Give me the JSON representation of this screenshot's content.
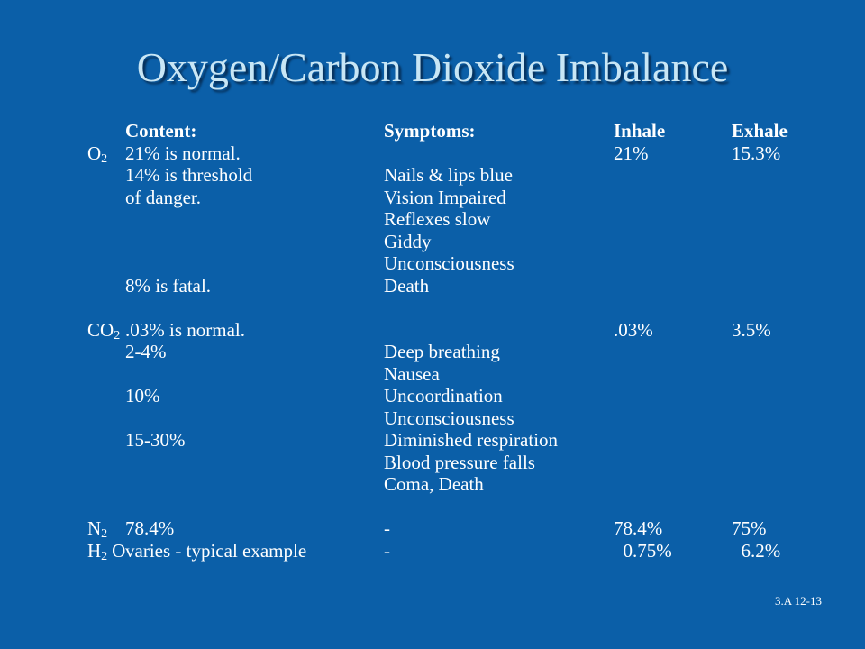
{
  "title": "Oxygen/Carbon Dioxide Imbalance",
  "table": {
    "header": {
      "content": "Content:",
      "symptoms": "Symptoms:",
      "inhale": "Inhale",
      "exhale": "Exhale"
    },
    "groups": [
      {
        "rows": [
          {
            "gas": {
              "symbol": "O",
              "sub": "2"
            },
            "content": "21% is normal.",
            "inhale": "21%",
            "exhale": "15.3%"
          },
          {
            "content": "14% is threshold",
            "symptoms": "Nails & lips blue"
          },
          {
            "content": "of danger.",
            "symptoms": "Vision Impaired"
          },
          {
            "symptoms": "Reflexes slow"
          },
          {
            "symptoms": "Giddy"
          },
          {
            "symptoms": "Unconsciousness"
          },
          {
            "content": "8% is fatal.",
            "symptoms": "Death"
          }
        ]
      },
      {
        "rows": [
          {
            "gas": {
              "symbol": "CO",
              "sub": "2"
            },
            "content": ".03% is normal.",
            "inhale": ".03%",
            "exhale": "3.5%"
          },
          {
            "content": "2-4%",
            "symptoms": "Deep breathing"
          },
          {
            "symptoms": "Nausea"
          },
          {
            "content": "10%",
            "symptoms": "Uncoordination"
          },
          {
            "symptoms": "Unconsciousness"
          },
          {
            "content": "15-30%",
            "symptoms": "Diminished respiration"
          },
          {
            "symptoms": "Blood pressure falls"
          },
          {
            "symptoms": "Coma, Death"
          }
        ]
      },
      {
        "rows": [
          {
            "gas": {
              "symbol": "N",
              "sub": "2"
            },
            "content": "78.4%",
            "symptoms": "-",
            "inhale": "78.4%",
            "exhale": "75%"
          },
          {
            "gas": {
              "symbol": "H",
              "sub": "2",
              "suffix": "O"
            },
            "content": "varies - typical example",
            "symptoms": "-",
            "inhale": "  0.75%",
            "exhale": "  6.2%"
          }
        ]
      }
    ]
  },
  "footer": "3.A 12-13"
}
